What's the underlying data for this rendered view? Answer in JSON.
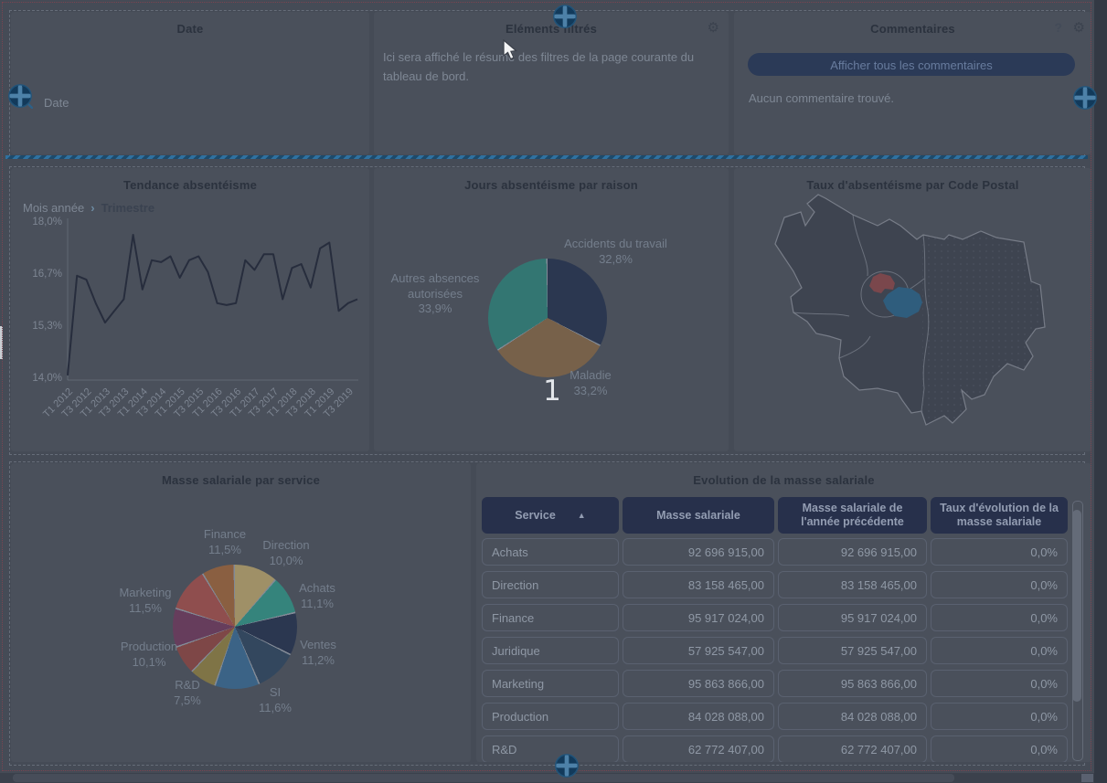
{
  "window": {
    "overlay_page_number": "1"
  },
  "icons": {
    "gear": "⚙",
    "help": "?",
    "sort_asc": "▲",
    "breadcrumb_chevron": "›"
  },
  "top_row": {
    "date_panel": {
      "title": "Date",
      "field_label": "Date"
    },
    "filters_panel": {
      "title": "Eléments filtrés",
      "description": "Ici sera affiché le résumé des filtres de la page courante du tableau de bord."
    },
    "comments_panel": {
      "title": "Commentaires",
      "show_all_button": "Afficher tous les commentaires",
      "empty_message": "Aucun commentaire trouvé."
    }
  },
  "chart_data": [
    {
      "type": "line",
      "title": "Tendance absentéisme",
      "breadcrumb": {
        "parent": "Mois année",
        "current": "Trimestre"
      },
      "y_ticks": [
        "18,0%",
        "16,7%",
        "15,3%",
        "14,0%"
      ],
      "ylim": [
        14.0,
        18.0
      ],
      "x_tick_labels": [
        "T1 2012",
        "T3 2012",
        "T1 2013",
        "T3 2013",
        "T1 2014",
        "T3 2014",
        "T1 2015",
        "T3 2015",
        "T1 2016",
        "T3 2016",
        "T1 2017",
        "T3 2017",
        "T1 2018",
        "T3 2018",
        "T1 2019",
        "T3 2019"
      ],
      "x": [
        "T1 2012",
        "T2 2012",
        "T3 2012",
        "T4 2012",
        "T1 2013",
        "T2 2013",
        "T3 2013",
        "T4 2013",
        "T1 2014",
        "T2 2014",
        "T3 2014",
        "T4 2014",
        "T1 2015",
        "T2 2015",
        "T3 2015",
        "T4 2015",
        "T1 2016",
        "T2 2016",
        "T3 2016",
        "T4 2016",
        "T1 2017",
        "T2 2017",
        "T3 2017",
        "T4 2017",
        "T1 2018",
        "T2 2018",
        "T3 2018",
        "T4 2018",
        "T1 2019",
        "T2 2019",
        "T3 2019",
        "T4 2019"
      ],
      "values_pct": [
        14.05,
        16.6,
        16.5,
        15.9,
        15.4,
        15.7,
        16.0,
        17.65,
        16.25,
        17.0,
        16.95,
        17.1,
        16.55,
        17.0,
        17.1,
        16.7,
        15.9,
        15.85,
        15.9,
        17.0,
        16.75,
        17.15,
        17.15,
        16.0,
        16.8,
        16.9,
        16.3,
        17.3,
        17.45,
        15.7,
        15.9,
        16.0
      ],
      "line_color": "#272d3d"
    },
    {
      "type": "pie",
      "title": "Jours absentéisme par raison",
      "slices": [
        {
          "label": "Accidents du travail",
          "pct": "32,8%",
          "value": 32.8,
          "color": "#2b3750"
        },
        {
          "label": "Maladie",
          "pct": "33,2%",
          "value": 33.2,
          "color": "#77614a"
        },
        {
          "label": "Autres absences autorisées",
          "pct": "33,9%",
          "value": 33.9,
          "color": "#337672"
        }
      ]
    },
    {
      "type": "map",
      "title": "Taux d'absentéisme par Code Postal",
      "region": "Île-de-France",
      "highlight_colors": [
        "#7a474c",
        "#2f5d7d"
      ]
    },
    {
      "type": "pie",
      "title": "Masse salariale par service",
      "slices": [
        {
          "label": "Finance",
          "pct": "11,5%",
          "value": 11.5,
          "color": "#9f9067"
        },
        {
          "label": "Direction",
          "pct": "10,0%",
          "value": 10.0,
          "color": "#35847c"
        },
        {
          "label": "Achats",
          "pct": "11,1%",
          "value": 11.1,
          "color": "#2b3750"
        },
        {
          "label": "Ventes",
          "pct": "11,2%",
          "value": 11.2,
          "color": "#33475e"
        },
        {
          "label": "SI",
          "pct": "11,6%",
          "value": 11.6,
          "color": "#3b6386"
        },
        {
          "label": "",
          "pct": "",
          "value": 7.0,
          "color": "#7f7446"
        },
        {
          "label": "R&D",
          "pct": "7,5%",
          "value": 7.5,
          "color": "#7e4747"
        },
        {
          "label": "Production",
          "pct": "10,1%",
          "value": 10.1,
          "color": "#663d5c"
        },
        {
          "label": "Marketing",
          "pct": "11,5%",
          "value": 11.5,
          "color": "#8f4e4e"
        },
        {
          "label": "",
          "pct": "",
          "value": 8.5,
          "color": "#8a5f41"
        }
      ]
    },
    {
      "type": "table",
      "title": "Evolution de la masse salariale",
      "columns": [
        "Service",
        "Masse salariale",
        "Masse salariale de l'année précédente",
        "Taux d'évolution de la masse salariale"
      ],
      "rows": [
        [
          "Achats",
          "92 696 915,00",
          "92 696 915,00",
          "0,0%"
        ],
        [
          "Direction",
          "83 158 465,00",
          "83 158 465,00",
          "0,0%"
        ],
        [
          "Finance",
          "95 917 024,00",
          "95 917 024,00",
          "0,0%"
        ],
        [
          "Juridique",
          "57 925 547,00",
          "57 925 547,00",
          "0,0%"
        ],
        [
          "Marketing",
          "95 863 866,00",
          "95 863 866,00",
          "0,0%"
        ],
        [
          "Production",
          "84 028 088,00",
          "84 028 088,00",
          "0,0%"
        ],
        [
          "R&D",
          "62 772 407,00",
          "62 772 407,00",
          "0,0%"
        ]
      ]
    }
  ]
}
